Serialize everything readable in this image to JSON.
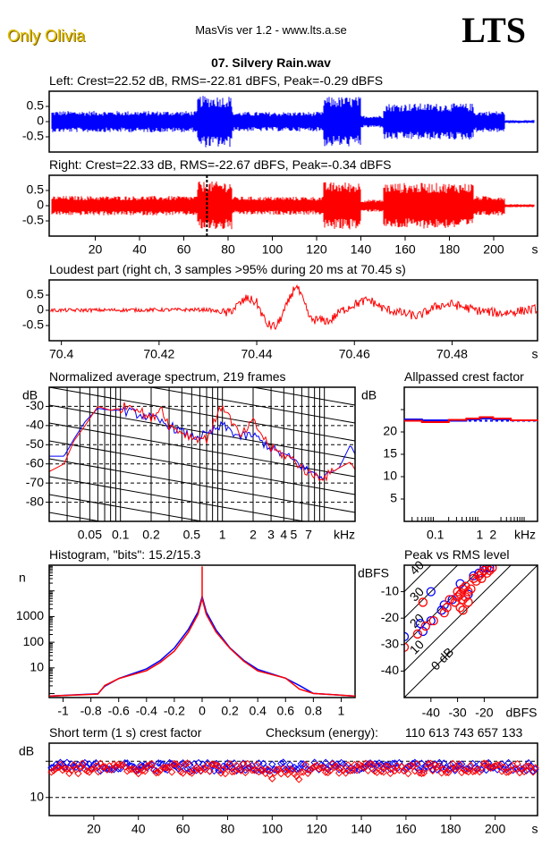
{
  "header": {
    "artist": "Only Olivia",
    "app_title": "MasVis ver 1.2 - www.lts.a.se",
    "logo": "LTS",
    "file_name": "07. Silvery Rain.wav"
  },
  "colors": {
    "left": "#0000ff",
    "right": "#ff0000"
  },
  "chart_data": [
    {
      "id": "left-waveform",
      "type": "area",
      "title": "Left: Crest=22.52 dB, RMS=-22.81 dBFS, Peak=-0.29 dBFS",
      "ylim": [
        -1,
        1
      ],
      "yticks": [
        "0.5",
        "0",
        "-0.5"
      ],
      "ytick_values": [
        0.5,
        0,
        -0.5
      ],
      "xlim": [
        0,
        219
      ],
      "envelope_segments": [
        {
          "from": 0,
          "to": 66,
          "amp": 0.35
        },
        {
          "from": 66,
          "to": 82,
          "amp": 0.85
        },
        {
          "from": 82,
          "to": 123,
          "amp": 0.32
        },
        {
          "from": 123,
          "to": 140,
          "amp": 0.82
        },
        {
          "from": 140,
          "to": 150,
          "amp": 0.2
        },
        {
          "from": 150,
          "to": 191,
          "amp": 0.6
        },
        {
          "from": 191,
          "to": 205,
          "amp": 0.35
        },
        {
          "from": 205,
          "to": 219,
          "amp": 0.05
        }
      ]
    },
    {
      "id": "right-waveform",
      "type": "area",
      "title": "Right: Crest=22.33 dB, RMS=-22.67 dBFS, Peak=-0.34 dBFS",
      "ylim": [
        -1,
        1
      ],
      "yticks": [
        "0.5",
        "0",
        "-0.5"
      ],
      "ytick_values": [
        0.5,
        0,
        -0.5
      ],
      "xlim": [
        0,
        219
      ],
      "xticks": [
        "20",
        "40",
        "60",
        "80",
        "100",
        "120",
        "140",
        "160",
        "180",
        "200"
      ],
      "xtick_values": [
        20,
        40,
        60,
        80,
        100,
        120,
        140,
        160,
        180,
        200
      ],
      "xunit": "s",
      "marker_time": 70.45,
      "envelope_segments": [
        {
          "from": 0,
          "to": 66,
          "amp": 0.32
        },
        {
          "from": 66,
          "to": 82,
          "amp": 0.8
        },
        {
          "from": 82,
          "to": 123,
          "amp": 0.3
        },
        {
          "from": 123,
          "to": 140,
          "amp": 0.78
        },
        {
          "from": 140,
          "to": 150,
          "amp": 0.2
        },
        {
          "from": 150,
          "to": 191,
          "amp": 0.75
        },
        {
          "from": 191,
          "to": 205,
          "amp": 0.32
        },
        {
          "from": 205,
          "to": 219,
          "amp": 0.05
        }
      ]
    },
    {
      "id": "loudest-part",
      "type": "line",
      "title": "Loudest part (right ch, 3 samples >95% during 20 ms at 70.45 s)",
      "ylim": [
        -1,
        1
      ],
      "yticks": [
        "0.5",
        "0",
        "-0.5"
      ],
      "ytick_values": [
        0.5,
        0,
        -0.5
      ],
      "xlim": [
        70.3975,
        70.4975
      ],
      "xticks": [
        "70.4",
        "70.42",
        "70.44",
        "70.46",
        "70.48"
      ],
      "xtick_values": [
        70.4,
        70.42,
        70.44,
        70.46,
        70.48
      ],
      "xunit": "s",
      "shape_points": [
        [
          70.3975,
          0.0
        ],
        [
          70.43,
          0.02
        ],
        [
          70.434,
          -0.1
        ],
        [
          70.438,
          0.4
        ],
        [
          70.44,
          0.25
        ],
        [
          70.442,
          -0.45
        ],
        [
          70.444,
          -0.55
        ],
        [
          70.446,
          0.1
        ],
        [
          70.448,
          0.85
        ],
        [
          70.449,
          0.5
        ],
        [
          70.451,
          -0.3
        ],
        [
          70.455,
          -0.35
        ],
        [
          70.457,
          -0.05
        ],
        [
          70.46,
          0.2
        ],
        [
          70.463,
          0.35
        ],
        [
          70.466,
          0.05
        ],
        [
          70.47,
          -0.1
        ],
        [
          70.473,
          -0.2
        ],
        [
          70.477,
          0.15
        ],
        [
          70.48,
          0.2
        ],
        [
          70.485,
          0.0
        ],
        [
          70.49,
          -0.1
        ],
        [
          70.4975,
          0.05
        ]
      ]
    },
    {
      "id": "spectrum",
      "type": "line",
      "title": "Normalized average spectrum, 219 frames",
      "ylabel": "dB",
      "ylim": [
        -90,
        -20
      ],
      "yticks": [
        "-30",
        "-40",
        "-50",
        "-60",
        "-70",
        "-80"
      ],
      "ytick_values": [
        -30,
        -40,
        -50,
        -60,
        -70,
        -80
      ],
      "xscale": "log",
      "xlim_khz": [
        0.02,
        20
      ],
      "xticks": [
        "0.05",
        "0.1",
        "0.2",
        "0.5",
        "1",
        "2",
        "3",
        "4",
        "5",
        "7",
        "kHz"
      ],
      "xtick_values": [
        0.05,
        0.1,
        0.2,
        0.5,
        1,
        2,
        3,
        4,
        5,
        7
      ],
      "series": [
        {
          "name": "Left",
          "points": [
            [
              0.02,
              -56
            ],
            [
              0.028,
              -56
            ],
            [
              0.035,
              -47
            ],
            [
              0.045,
              -38
            ],
            [
              0.06,
              -31
            ],
            [
              0.08,
              -32
            ],
            [
              0.1,
              -32
            ],
            [
              0.15,
              -34
            ],
            [
              0.2,
              -36
            ],
            [
              0.3,
              -40
            ],
            [
              0.5,
              -46
            ],
            [
              0.7,
              -45
            ],
            [
              1,
              -40
            ],
            [
              1.5,
              -46
            ],
            [
              2,
              -45
            ],
            [
              3,
              -52
            ],
            [
              5,
              -58
            ],
            [
              7,
              -64
            ],
            [
              10,
              -67
            ],
            [
              14,
              -62
            ],
            [
              18,
              -50
            ],
            [
              20,
              -55
            ]
          ]
        },
        {
          "name": "Right",
          "points": [
            [
              0.02,
              -64
            ],
            [
              0.028,
              -60
            ],
            [
              0.035,
              -48
            ],
            [
              0.045,
              -40
            ],
            [
              0.06,
              -30
            ],
            [
              0.08,
              -32
            ],
            [
              0.1,
              -31
            ],
            [
              0.13,
              -29
            ],
            [
              0.2,
              -37
            ],
            [
              0.25,
              -30
            ],
            [
              0.3,
              -40
            ],
            [
              0.5,
              -46
            ],
            [
              0.7,
              -47
            ],
            [
              1,
              -29
            ],
            [
              1.5,
              -46
            ],
            [
              2,
              -38
            ],
            [
              3,
              -52
            ],
            [
              5,
              -58
            ],
            [
              7,
              -65
            ],
            [
              10,
              -67
            ],
            [
              14,
              -62
            ],
            [
              18,
              -59
            ],
            [
              20,
              -63
            ]
          ]
        }
      ]
    },
    {
      "id": "allpassed-crest",
      "type": "line",
      "title": "Allpassed crest factor",
      "ylabel": "dB",
      "ylim": [
        0,
        30
      ],
      "yticks": [
        "20",
        "15",
        "10",
        "5"
      ],
      "ytick_values": [
        20,
        15,
        10,
        5
      ],
      "xscale": "log",
      "xlim_khz": [
        0.02,
        20
      ],
      "xticks": [
        "0.1",
        "1",
        "2",
        "kHz"
      ],
      "xtick_values": [
        0.1,
        1,
        2
      ],
      "reference_level": 22.5,
      "series": [
        {
          "name": "Left",
          "points": [
            [
              0.02,
              22.8
            ],
            [
              0.05,
              22.6
            ],
            [
              0.2,
              22.5
            ],
            [
              0.5,
              22.8
            ],
            [
              1,
              23.0
            ],
            [
              2,
              22.8
            ],
            [
              5,
              22.6
            ],
            [
              20,
              22.6
            ]
          ]
        },
        {
          "name": "Right",
          "points": [
            [
              0.02,
              22.5
            ],
            [
              0.05,
              22.2
            ],
            [
              0.2,
              22.7
            ],
            [
              0.5,
              23.0
            ],
            [
              1,
              23.3
            ],
            [
              2,
              23.0
            ],
            [
              5,
              22.6
            ],
            [
              20,
              22.5
            ]
          ]
        }
      ]
    },
    {
      "id": "histogram",
      "type": "line",
      "title": "Histogram, \"bits\": 15.2/15.3",
      "ylabel": "n",
      "yscale": "log",
      "ylim": [
        0.7,
        100000
      ],
      "yticks": [
        "1000",
        "100",
        "10"
      ],
      "ytick_values": [
        1000,
        100,
        10
      ],
      "xlim": [
        -1.1,
        1.1
      ],
      "xticks": [
        "-1",
        "-0.8",
        "-0.6",
        "-0.4",
        "-0.2",
        "0",
        "0.2",
        "0.4",
        "0.6",
        "0.8",
        "1"
      ],
      "xtick_values": [
        -1,
        -0.8,
        -0.6,
        -0.4,
        -0.2,
        0,
        0.2,
        0.4,
        0.6,
        0.8,
        1
      ],
      "series": [
        {
          "name": "Left",
          "points": [
            [
              -1.1,
              0.8
            ],
            [
              -0.75,
              1
            ],
            [
              -0.7,
              2
            ],
            [
              -0.6,
              4
            ],
            [
              -0.4,
              9
            ],
            [
              -0.3,
              20
            ],
            [
              -0.2,
              60
            ],
            [
              -0.1,
              300
            ],
            [
              -0.03,
              1500
            ],
            [
              0,
              6000
            ],
            [
              0.03,
              1500
            ],
            [
              0.1,
              300
            ],
            [
              0.2,
              60
            ],
            [
              0.3,
              20
            ],
            [
              0.4,
              9
            ],
            [
              0.6,
              4
            ],
            [
              0.7,
              2
            ],
            [
              0.8,
              1
            ],
            [
              1.1,
              0.8
            ]
          ]
        },
        {
          "name": "Right",
          "points": [
            [
              -1.1,
              0.8
            ],
            [
              -0.75,
              1
            ],
            [
              -0.7,
              2
            ],
            [
              -0.6,
              4
            ],
            [
              -0.4,
              8
            ],
            [
              -0.3,
              16
            ],
            [
              -0.2,
              45
            ],
            [
              -0.1,
              230
            ],
            [
              -0.03,
              1200
            ],
            [
              0,
              5000
            ],
            [
              0,
              90000
            ],
            [
              0,
              5000
            ],
            [
              0.03,
              1200
            ],
            [
              0.1,
              250
            ],
            [
              0.2,
              55
            ],
            [
              0.3,
              18
            ],
            [
              0.4,
              8
            ],
            [
              0.6,
              4
            ],
            [
              0.7,
              1.5
            ],
            [
              0.8,
              1
            ],
            [
              1.1,
              0.8
            ]
          ]
        }
      ]
    },
    {
      "id": "peak-vs-rms",
      "type": "scatter",
      "title": "Peak vs RMS level",
      "ylabel": "dBFS",
      "xlabel": "dBFS",
      "xlim": [
        -50,
        0
      ],
      "ylim": [
        -50,
        0
      ],
      "yticks": [
        "-10",
        "-20",
        "-30",
        "-40"
      ],
      "ytick_values": [
        -10,
        -20,
        -30,
        -40
      ],
      "xticks": [
        "-40",
        "-30",
        "-20"
      ],
      "xtick_values": [
        -40,
        -30,
        -20
      ],
      "diagonal_labels": [
        "40",
        "30",
        "20",
        "10",
        "0 dB"
      ],
      "diagonal_offsets": [
        40,
        30,
        20,
        10,
        0
      ],
      "series": [
        {
          "name": "Left",
          "points": [
            [
              -40,
              -10
            ],
            [
              -44,
              -22
            ],
            [
              -43,
              -25
            ],
            [
              -40,
              -21
            ],
            [
              -36,
              -17
            ],
            [
              -35,
              -15
            ],
            [
              -32,
              -13
            ],
            [
              -29,
              -7
            ],
            [
              -28,
              -9
            ],
            [
              -26,
              -11
            ],
            [
              -24,
              -4
            ],
            [
              -22,
              -3
            ],
            [
              -20,
              -1
            ],
            [
              -19,
              -1
            ],
            [
              -18,
              -1
            ],
            [
              -50,
              -27
            ]
          ]
        },
        {
          "name": "Right",
          "points": [
            [
              -43,
              -14
            ],
            [
              -45,
              -26
            ],
            [
              -42,
              -23
            ],
            [
              -39,
              -21
            ],
            [
              -35,
              -18
            ],
            [
              -34,
              -16
            ],
            [
              -33,
              -13
            ],
            [
              -31,
              -14
            ],
            [
              -30,
              -12
            ],
            [
              -30,
              -10
            ],
            [
              -29,
              -11
            ],
            [
              -28,
              -9
            ],
            [
              -28,
              -13
            ],
            [
              -27,
              -8
            ],
            [
              -27,
              -12
            ],
            [
              -26,
              -10
            ],
            [
              -26,
              -14
            ],
            [
              -25,
              -9
            ],
            [
              -29,
              -16
            ],
            [
              -28,
              -17
            ],
            [
              -24,
              -5
            ],
            [
              -23,
              -6
            ],
            [
              -22,
              -4
            ],
            [
              -21,
              -5
            ],
            [
              -21,
              -3
            ],
            [
              -20,
              -2
            ],
            [
              -19,
              -3
            ],
            [
              -18,
              -2
            ],
            [
              -17,
              -1
            ],
            [
              -50,
              -31
            ]
          ]
        }
      ]
    },
    {
      "id": "short-term-crest",
      "type": "scatter",
      "title": "Short term (1 s) crest factor",
      "checksum_label": "Checksum (energy):",
      "checksum_value": "110 613 743 657 133",
      "ylabel": "dB",
      "ylim": [
        5,
        25
      ],
      "yticks": [
        "10"
      ],
      "ytick_values": [
        10
      ],
      "ref_lines": [
        10,
        20
      ],
      "xlim": [
        0,
        219
      ],
      "xticks": [
        "20",
        "40",
        "60",
        "80",
        "100",
        "120",
        "140",
        "160",
        "180",
        "200"
      ],
      "xtick_values": [
        20,
        40,
        60,
        80,
        100,
        120,
        140,
        160,
        180,
        200
      ],
      "xunit": "s",
      "series": [
        {
          "name": "Left",
          "mean": 18.5,
          "spread": 1.2
        },
        {
          "name": "Right",
          "mean": 18.0,
          "spread": 1.5
        }
      ]
    }
  ]
}
